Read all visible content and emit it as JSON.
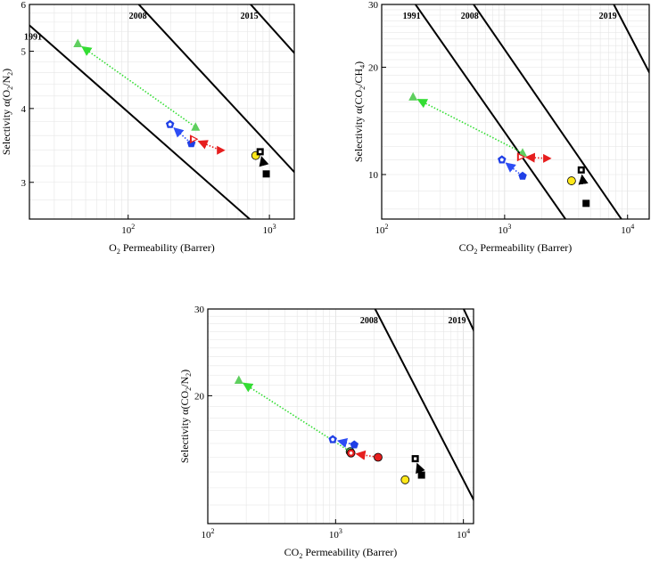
{
  "colors": {
    "green": "#5fcf5f",
    "green_arrow": "#33dd33",
    "blue": "#1f3fe6",
    "blue_arrow": "#2d4df5",
    "red": "#e61e1e",
    "red_arrow": "#e61e1e",
    "yellow": "#ffe81a",
    "black": "#000000"
  },
  "chart_data": [
    {
      "id": "o2n2",
      "type": "scatter",
      "title": "",
      "xlabel_main": "O",
      "xlabel_sub": "2",
      "xlabel_rest": " Permeability  (Barrer)",
      "ylabel_main": "Selectivity α(O",
      "ylabel_sub1": "2",
      "ylabel_mid": "/N",
      "ylabel_sub2": "2",
      "ylabel_end": ")",
      "xscale": "log",
      "yscale": "log",
      "xlim": [
        20,
        1500
      ],
      "ylim": [
        2.6,
        6
      ],
      "xticks": [
        {
          "v": 100,
          "base": "10",
          "exp": "2"
        },
        {
          "v": 1000,
          "base": "10",
          "exp": "3"
        }
      ],
      "yticks": [
        {
          "v": 3,
          "label": "3"
        },
        {
          "v": 4,
          "label": "4"
        },
        {
          "v": 5,
          "label": "5"
        },
        {
          "v": 6,
          "label": "6"
        }
      ],
      "upper_bounds": [
        {
          "label": "1991",
          "p1": [
            10,
            6.4
          ],
          "p2": [
            2000,
            2.1
          ]
        },
        {
          "label": "2008",
          "p1": [
            50,
            7.5
          ],
          "p2": [
            2000,
            2.9
          ]
        },
        {
          "label": "2015",
          "p1": [
            250,
            8
          ],
          "p2": [
            2000,
            4.6
          ]
        }
      ],
      "points": [
        {
          "series": "green",
          "marker": "triangle",
          "x": 44,
          "y": 5.15
        },
        {
          "series": "green",
          "marker": "triangle",
          "x": 300,
          "y": 3.72
        },
        {
          "series": "blue",
          "marker": "pentagon-open",
          "x": 198,
          "y": 3.76
        },
        {
          "series": "blue",
          "marker": "pentagon",
          "x": 280,
          "y": 3.49
        },
        {
          "series": "red",
          "marker": "triangle-right-open",
          "x": 290,
          "y": 3.55
        },
        {
          "series": "red",
          "marker": "triangle-right",
          "x": 450,
          "y": 3.4
        },
        {
          "series": "yellow",
          "marker": "circle",
          "x": 800,
          "y": 3.33
        },
        {
          "series": "black",
          "marker": "square-open",
          "x": 860,
          "y": 3.38
        },
        {
          "series": "black",
          "marker": "square",
          "x": 950,
          "y": 3.1
        }
      ],
      "arrows": [
        {
          "series": "green",
          "from": [
            300,
            3.72
          ],
          "to": [
            44,
            5.15
          ]
        },
        {
          "series": "blue",
          "from": [
            280,
            3.49
          ],
          "to": [
            198,
            3.76
          ]
        },
        {
          "series": "red",
          "from": [
            450,
            3.4
          ],
          "to": [
            290,
            3.55
          ]
        },
        {
          "series": "black",
          "from": [
            950,
            3.1
          ],
          "to": [
            860,
            3.38
          ]
        }
      ]
    },
    {
      "id": "co2ch4",
      "type": "scatter",
      "title": "",
      "xlabel_main": "CO",
      "xlabel_sub": "2",
      "xlabel_rest": " Permeability (Barrer)",
      "ylabel_main": "Selectivity α(CO",
      "ylabel_sub1": "2",
      "ylabel_mid": "/CH",
      "ylabel_sub2": "4",
      "ylabel_end": ")",
      "xscale": "log",
      "yscale": "log",
      "xlim": [
        100,
        15000
      ],
      "ylim": [
        7.5,
        30
      ],
      "xticks": [
        {
          "v": 100,
          "base": "10",
          "exp": "2"
        },
        {
          "v": 1000,
          "base": "10",
          "exp": "3"
        },
        {
          "v": 10000,
          "base": "10",
          "exp": "4"
        }
      ],
      "yticks": [
        {
          "v": 10,
          "label": "10"
        },
        {
          "v": 20,
          "label": "20"
        },
        {
          "v": 30,
          "label": "30"
        }
      ],
      "upper_bounds": [
        {
          "label": "1991",
          "p1": [
            100,
            41
          ],
          "p2": [
            20000,
            3.0
          ]
        },
        {
          "label": "2008",
          "p1": [
            300,
            41
          ],
          "p2": [
            20000,
            5.0
          ]
        },
        {
          "label": "2019",
          "p1": [
            5000,
            40
          ],
          "p2": [
            20000,
            16
          ]
        }
      ],
      "points": [
        {
          "series": "green",
          "marker": "triangle",
          "x": 180,
          "y": 16.5
        },
        {
          "series": "green",
          "marker": "triangle",
          "x": 1400,
          "y": 11.5
        },
        {
          "series": "blue",
          "marker": "pentagon-open",
          "x": 950,
          "y": 11.0
        },
        {
          "series": "blue",
          "marker": "pentagon",
          "x": 1400,
          "y": 9.9
        },
        {
          "series": "red",
          "marker": "triangle-right-open",
          "x": 1350,
          "y": 11.2
        },
        {
          "series": "red",
          "marker": "triangle-right",
          "x": 2200,
          "y": 11.1
        },
        {
          "series": "yellow",
          "marker": "circle",
          "x": 3500,
          "y": 9.6
        },
        {
          "series": "black",
          "marker": "square-open",
          "x": 4200,
          "y": 10.3
        },
        {
          "series": "black",
          "marker": "square",
          "x": 4600,
          "y": 8.3
        }
      ],
      "arrows": [
        {
          "series": "green",
          "from": [
            1400,
            11.5
          ],
          "to": [
            180,
            16.5
          ]
        },
        {
          "series": "blue",
          "from": [
            1400,
            9.9
          ],
          "to": [
            950,
            11.0
          ]
        },
        {
          "series": "red",
          "from": [
            2200,
            11.1
          ],
          "to": [
            1350,
            11.2
          ]
        },
        {
          "series": "black",
          "from": [
            4600,
            8.3
          ],
          "to": [
            4200,
            10.3
          ]
        }
      ]
    },
    {
      "id": "co2n2",
      "type": "scatter",
      "title": "",
      "xlabel_main": "CO",
      "xlabel_sub": "2",
      "xlabel_rest": " Permeability (Barrer)",
      "ylabel_main": "Selectivity α(CO",
      "ylabel_sub1": "2",
      "ylabel_mid": "/N",
      "ylabel_sub2": "2",
      "ylabel_end": ")",
      "xscale": "log",
      "yscale": "log",
      "xlim": [
        100,
        12000
      ],
      "ylim": [
        11,
        30
      ],
      "xticks": [
        {
          "v": 100,
          "base": "10",
          "exp": "2"
        },
        {
          "v": 1000,
          "base": "10",
          "exp": "3"
        },
        {
          "v": 10000,
          "base": "10",
          "exp": "4"
        }
      ],
      "yticks": [
        {
          "v": 20,
          "label": "20"
        },
        {
          "v": 30,
          "label": "30"
        }
      ],
      "upper_bounds": [
        {
          "label": "2008",
          "p1": [
            1500,
            35
          ],
          "p2": [
            15000,
            11.0
          ]
        },
        {
          "label": "2019",
          "p1": [
            6000,
            40
          ],
          "p2": [
            15000,
            24
          ]
        }
      ],
      "points": [
        {
          "series": "green",
          "marker": "triangle",
          "x": 175,
          "y": 21.5
        },
        {
          "series": "green",
          "marker": "circle",
          "x": 1300,
          "y": 15.4
        },
        {
          "series": "blue",
          "marker": "pentagon-open",
          "x": 950,
          "y": 16.3
        },
        {
          "series": "blue",
          "marker": "pentagon",
          "x": 1400,
          "y": 15.9
        },
        {
          "series": "red",
          "marker": "circle-open",
          "x": 1320,
          "y": 15.3
        },
        {
          "series": "red",
          "marker": "circle",
          "x": 2150,
          "y": 15.0
        },
        {
          "series": "yellow",
          "marker": "circle",
          "x": 3500,
          "y": 13.5
        },
        {
          "series": "black",
          "marker": "square-open",
          "x": 4200,
          "y": 14.9
        },
        {
          "series": "black",
          "marker": "square",
          "x": 4700,
          "y": 13.8
        }
      ],
      "arrows": [
        {
          "series": "green",
          "from": [
            1300,
            15.4
          ],
          "to": [
            175,
            21.5
          ]
        },
        {
          "series": "blue",
          "from": [
            1400,
            15.9
          ],
          "to": [
            950,
            16.3
          ]
        },
        {
          "series": "red",
          "from": [
            2150,
            15.0
          ],
          "to": [
            1320,
            15.3
          ]
        },
        {
          "series": "black",
          "from": [
            4700,
            13.8
          ],
          "to": [
            4200,
            14.9
          ]
        }
      ]
    }
  ]
}
